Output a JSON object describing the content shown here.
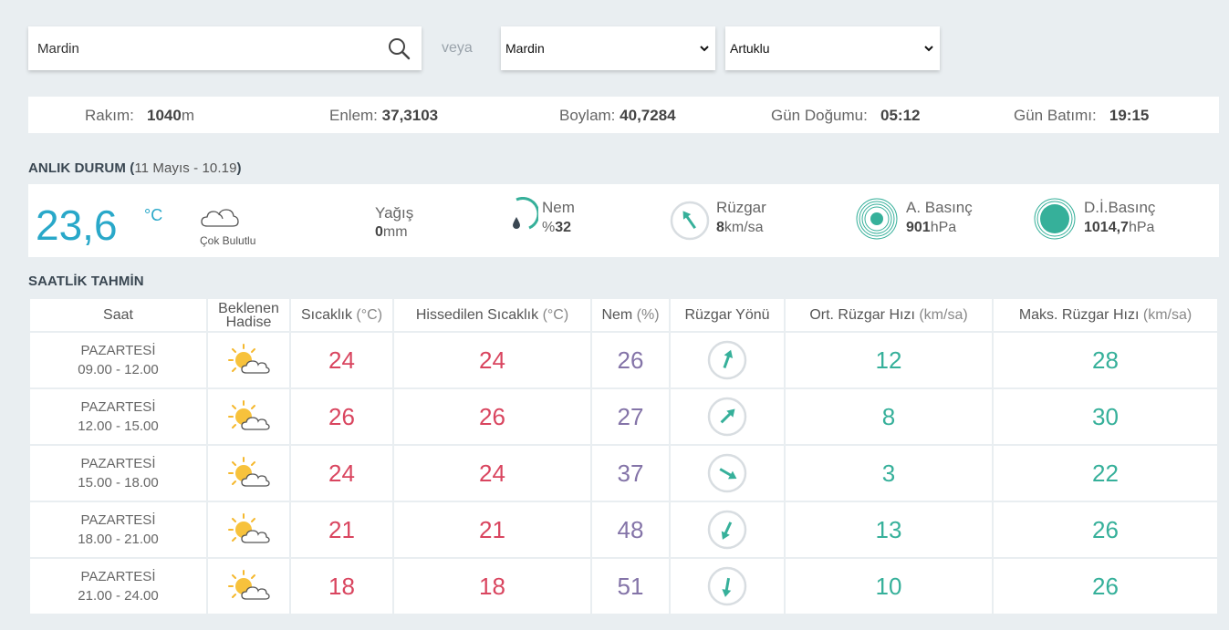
{
  "search": {
    "value": "Mardin"
  },
  "or_label": "veya",
  "province_select": {
    "selected": "Mardin"
  },
  "district_select": {
    "selected": "Artuklu"
  },
  "info": {
    "altitude_label": "Rakım:",
    "altitude_value": "1040",
    "altitude_unit": "m",
    "lat_label": "Enlem:",
    "lat_value": "37,3103",
    "lon_label": "Boylam:",
    "lon_value": "40,7284",
    "sunrise_label": "Gün Doğumu:",
    "sunrise_value": "05:12",
    "sunset_label": "Gün Batımı:",
    "sunset_value": "19:15"
  },
  "current": {
    "title": "ANLIK DURUM",
    "open_paren": "(",
    "date": "11 Mayıs - 10.19",
    "close_paren": ")",
    "temperature": "23,6",
    "temp_unit": "°C",
    "condition": "Çok Bulutlu",
    "precip_label": "Yağış",
    "precip_value": "0",
    "precip_unit": "mm",
    "humidity_label": "Nem",
    "humidity_prefix": "%",
    "humidity_value": "32",
    "wind_label": "Rüzgar",
    "wind_value": "8",
    "wind_unit": "km/sa",
    "pressure_label": "A. Basınç",
    "pressure_value": "901",
    "pressure_unit": "hPa",
    "sea_pressure_label": "D.İ.Basınç",
    "sea_pressure_value": "1014,7",
    "sea_pressure_unit": "hPa"
  },
  "forecast": {
    "title": "SAATLİK TAHMİN",
    "headers": {
      "time": "Saat",
      "event_line1": "Beklenen",
      "event_line2": "Hadise",
      "temp": "Sıcaklık",
      "temp_unit": "(°C)",
      "feels": "Hissedilen Sıcaklık",
      "feels_unit": "(°C)",
      "humidity": "Nem",
      "humidity_unit": "(%)",
      "wind_dir": "Rüzgar Yönü",
      "avg_wind": "Ort. Rüzgar Hızı",
      "avg_wind_unit": "(km/sa)",
      "max_wind": "Maks. Rüzgar Hızı",
      "max_wind_unit": "(km/sa)"
    },
    "rows": [
      {
        "day": "PAZARTESİ",
        "range": "09.00 - 12.00",
        "icon": "partly-cloudy-icon",
        "temp": "24",
        "feels": "24",
        "humidity": "26",
        "wind_dir_deg": 20,
        "avg_wind": "12",
        "max_wind": "28"
      },
      {
        "day": "PAZARTESİ",
        "range": "12.00 - 15.00",
        "icon": "partly-cloudy-icon",
        "temp": "26",
        "feels": "26",
        "humidity": "27",
        "wind_dir_deg": 45,
        "avg_wind": "8",
        "max_wind": "30"
      },
      {
        "day": "PAZARTESİ",
        "range": "15.00 - 18.00",
        "icon": "partly-cloudy-icon",
        "temp": "24",
        "feels": "24",
        "humidity": "37",
        "wind_dir_deg": 120,
        "avg_wind": "3",
        "max_wind": "22"
      },
      {
        "day": "PAZARTESİ",
        "range": "18.00 - 21.00",
        "icon": "partly-cloudy-icon",
        "temp": "21",
        "feels": "21",
        "humidity": "48",
        "wind_dir_deg": 205,
        "avg_wind": "13",
        "max_wind": "26"
      },
      {
        "day": "PAZARTESİ",
        "range": "21.00 - 24.00",
        "icon": "partly-cloudy-icon",
        "temp": "18",
        "feels": "18",
        "humidity": "51",
        "wind_dir_deg": 190,
        "avg_wind": "10",
        "max_wind": "26"
      }
    ]
  },
  "colors": {
    "accent_blue": "#29a8c9",
    "temp_red": "#d9455f",
    "humidity_purple": "#8474a8",
    "wind_green": "#36b09a"
  }
}
